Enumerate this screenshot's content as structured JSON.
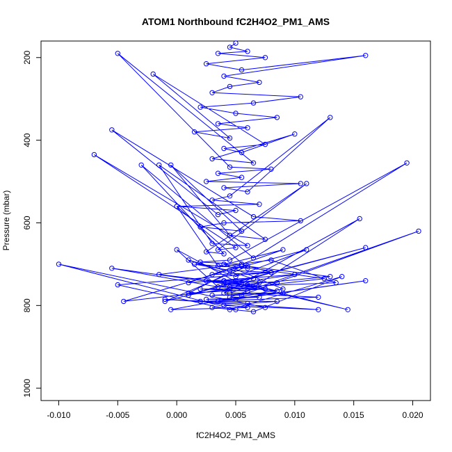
{
  "chart_data": {
    "type": "line",
    "title": "ATOM1 Northbound fC2H4O2_PM1_AMS",
    "xlabel": "fC2H4O2_PM1_AMS",
    "ylabel": "Pressure (mbar)",
    "xlim": [
      -0.0115,
      0.0215
    ],
    "ylim": [
      1030,
      160
    ],
    "y_reversed": true,
    "grid": false,
    "legend": "none",
    "xticks": [
      -0.01,
      -0.005,
      0.0,
      0.005,
      0.01,
      0.015,
      0.02
    ],
    "xtick_labels": [
      "-0.010",
      "-0.005",
      "0.000",
      "0.005",
      "0.010",
      "0.015",
      "0.020"
    ],
    "yticks": [
      200,
      400,
      600,
      800,
      1000
    ],
    "ytick_labels": [
      "200",
      "400",
      "600",
      "800",
      "1000"
    ],
    "line_color": "#0000ff",
    "marker": "open-circle",
    "series": [
      {
        "x": [
          0.005,
          0.0045,
          0.006,
          0.0035,
          0.0075,
          0.0025,
          0.0055,
          0.016,
          0.004,
          0.007,
          0.0045,
          0.003,
          0.0105,
          0.0065,
          0.002,
          0.005,
          0.0085,
          0.0035,
          0.006,
          0.0015,
          0.0045,
          -0.002,
          0.0075,
          0.004,
          0.0055,
          0.01,
          0.003,
          0.0065,
          -0.005,
          0.0045,
          0.008,
          0.0035,
          0.0055,
          0.0025,
          0.0105,
          0.004,
          0.006,
          0.013,
          0.0045,
          0.003,
          0.007,
          0.0,
          0.005,
          0.0035,
          -0.0055,
          0.0065,
          0.0105,
          0.004,
          0.002,
          0.0055,
          -0.0005,
          0.0045,
          0.0075,
          -0.0015,
          0.003,
          0.006,
          -0.007,
          0.005,
          0.0035,
          0.011,
          0.0025,
          0.004,
          -0.003,
          0.0065,
          0.0195,
          0.0045,
          0.002,
          0.0055,
          0.009,
          0.0035,
          0.0,
          0.006,
          0.0015,
          0.0045,
          0.008,
          0.003,
          0.011,
          0.005,
          0.001,
          0.0065,
          0.004,
          0.0085,
          0.0025,
          0.0055,
          0.0,
          0.0035,
          0.0075,
          0.0045,
          0.002,
          0.006,
          0.0155,
          0.004,
          0.009,
          0.003,
          0.0055,
          0.0205,
          0.0045,
          0.007,
          0.0025,
          0.005,
          0.016,
          0.0035,
          0.0085,
          0.006,
          -0.001,
          0.012,
          0.004,
          0.0075,
          -0.01,
          0.005,
          0.003,
          0.0065,
          0.014,
          0.0045,
          -0.005,
          0.008,
          0.0055,
          0.001,
          0.01,
          0.004,
          0.016,
          -0.001,
          0.006,
          0.013,
          0.0035,
          -0.0055,
          0.0085,
          0.005,
          0.001,
          0.007,
          0.0045,
          0.012,
          0.002,
          0.006,
          -0.0005,
          0.009,
          0.004,
          0.0125,
          -0.0045,
          0.0055,
          0.001,
          0.0075,
          0.004,
          0.0145,
          0.006,
          -0.0015,
          0.008,
          0.0135,
          0.0045
        ],
        "y": [
          165,
          175,
          185,
          190,
          200,
          215,
          230,
          195,
          245,
          260,
          270,
          285,
          295,
          310,
          320,
          335,
          345,
          360,
          370,
          380,
          395,
          240,
          410,
          420,
          430,
          385,
          445,
          455,
          190,
          465,
          470,
          480,
          490,
          500,
          505,
          515,
          525,
          345,
          535,
          545,
          555,
          560,
          570,
          580,
          375,
          585,
          595,
          600,
          610,
          620,
          460,
          630,
          640,
          460,
          650,
          655,
          435,
          660,
          665,
          505,
          670,
          675,
          460,
          685,
          455,
          690,
          695,
          700,
          665,
          705,
          560,
          710,
          700,
          715,
          720,
          725,
          665,
          730,
          690,
          735,
          740,
          745,
          740,
          750,
          665,
          755,
          760,
          760,
          760,
          765,
          590,
          770,
          770,
          775,
          775,
          620,
          780,
          780,
          785,
          785,
          740,
          790,
          790,
          795,
          785,
          810,
          800,
          805,
          700,
          810,
          805,
          815,
          730,
          810,
          750,
          720,
          700,
          745,
          725,
          750,
          660,
          790,
          705,
          730,
          755,
          710,
          765,
          740,
          775,
          745,
          770,
          780,
          790,
          805,
          810,
          760,
          700,
          735,
          790,
          705,
          770,
          760,
          740,
          810,
          750,
          725,
          690,
          745,
          755
        ]
      }
    ]
  }
}
